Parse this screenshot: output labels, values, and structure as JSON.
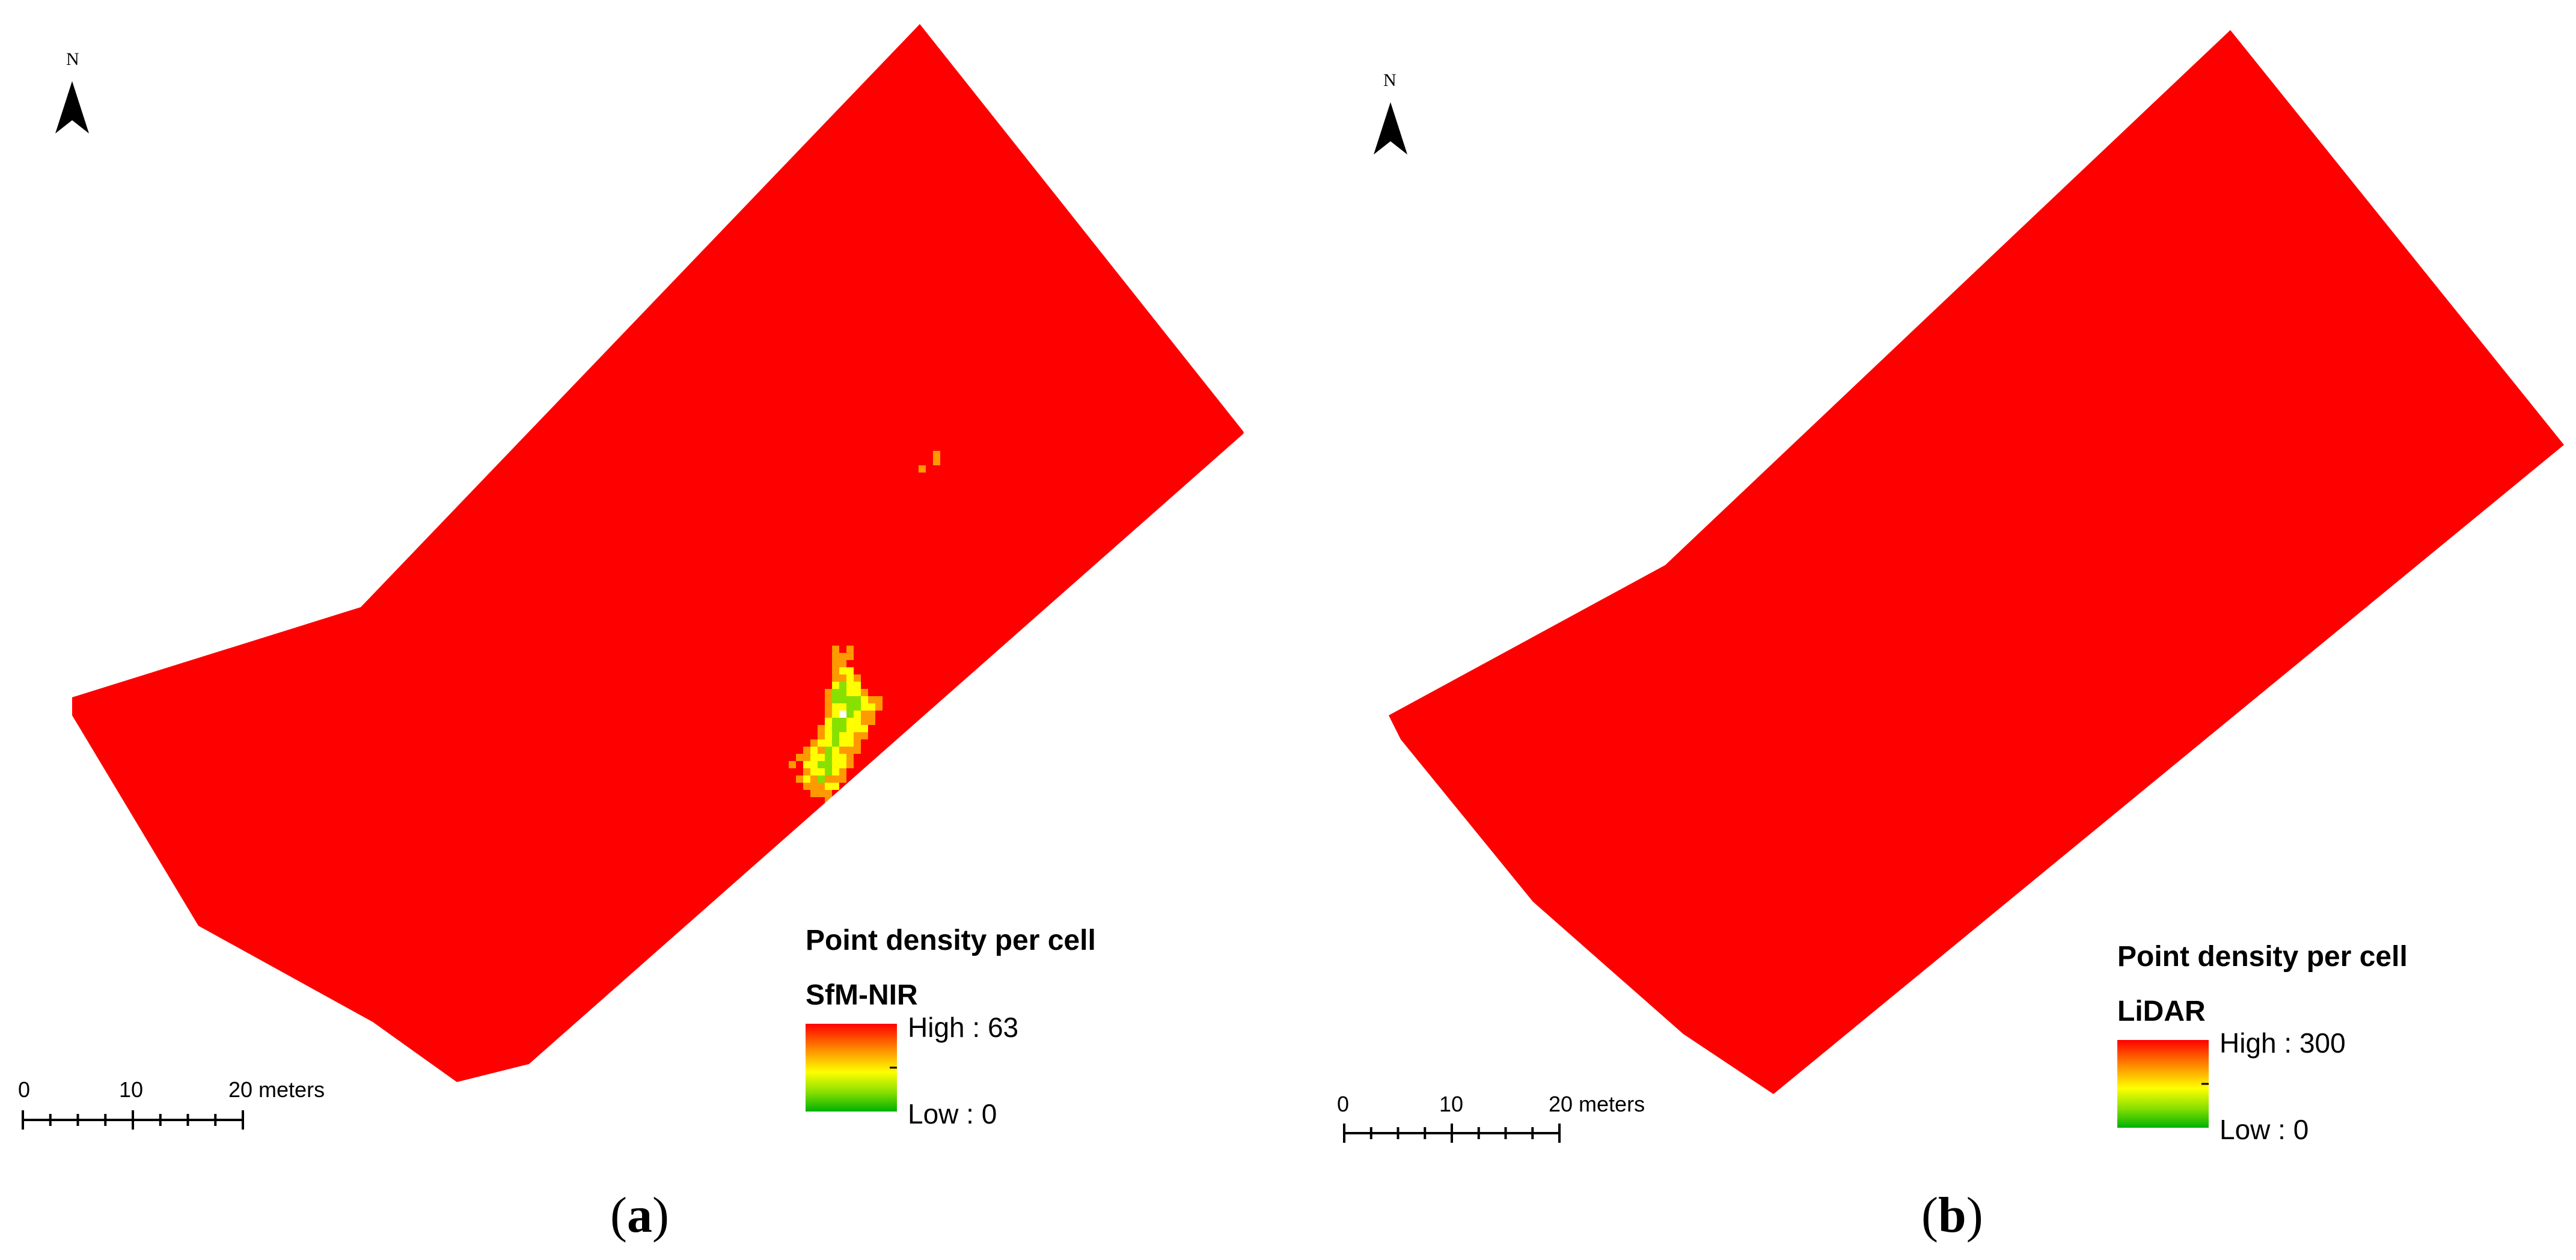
{
  "panels": [
    {
      "id": "a",
      "label": "a",
      "north_letter": "N",
      "legend_title": "Point density per cell",
      "sensor": "SfM-NIR",
      "high_label": "High : 63",
      "low_label": "Low : 0",
      "density_max": 63,
      "scale_labels": [
        "0",
        "10",
        "20 meters"
      ],
      "coverage": "sparse"
    },
    {
      "id": "b",
      "label": "b",
      "north_letter": "N",
      "legend_title": "Point density per cell",
      "sensor": "LiDAR",
      "high_label": "High : 300",
      "low_label": "Low : 0",
      "density_max": 300,
      "scale_labels": [
        "0",
        "10",
        "20 meters"
      ],
      "coverage": "dense"
    }
  ],
  "colors": {
    "high": "#ff0000",
    "mid_high": "#ff9900",
    "mid": "#ffff00",
    "mid_low": "#88e000",
    "low": "#00b000"
  }
}
